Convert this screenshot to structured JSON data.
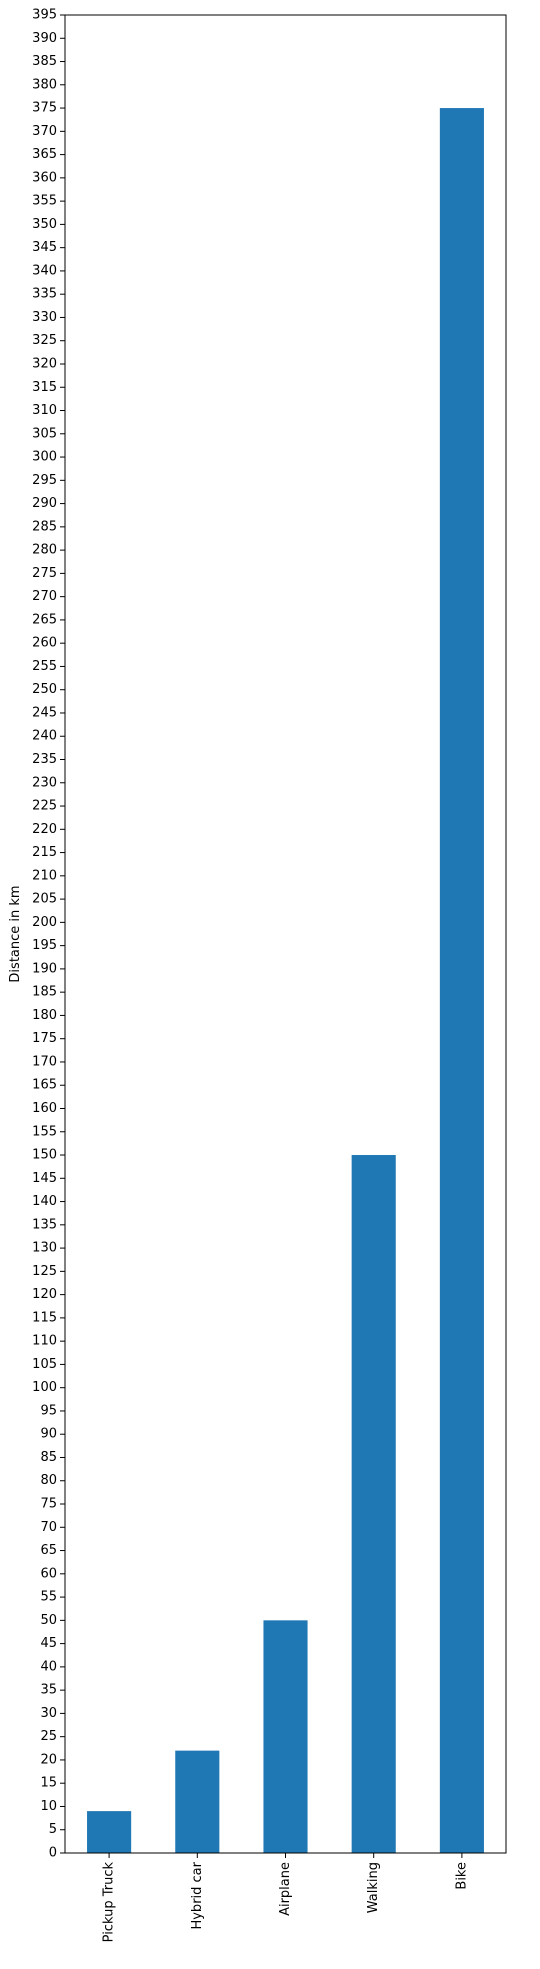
{
  "chart_data": {
    "type": "bar",
    "title": "",
    "xlabel": "",
    "ylabel": "Distance in km",
    "categories": [
      "Pickup Truck",
      "Hybrid car",
      "Airplane",
      "Walking",
      "Bike"
    ],
    "values": [
      9,
      22,
      50,
      150,
      375
    ],
    "ylim": [
      0,
      395
    ],
    "ytick_step": 5,
    "bar_color": "#1f77b4",
    "grid": false,
    "legend": "none"
  }
}
